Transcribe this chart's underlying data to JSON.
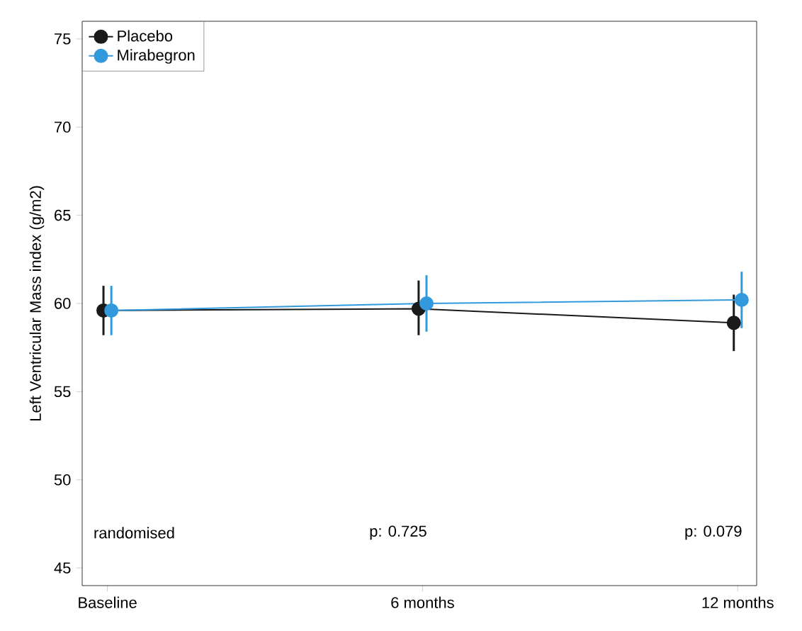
{
  "chart_data": {
    "type": "line",
    "ylabel": "Left Ventricular Mass index (g/m2)",
    "categories": [
      "Baseline",
      "6 months",
      "12 months"
    ],
    "series": [
      {
        "name": "Placebo",
        "color": "#1a1a1a",
        "values": [
          59.6,
          59.7,
          58.9
        ],
        "errors": [
          [
            58.2,
            61.0
          ],
          [
            58.2,
            61.3
          ],
          [
            57.3,
            60.5
          ]
        ]
      },
      {
        "name": "Mirabegron",
        "color": "#3399dd",
        "values": [
          59.6,
          60.0,
          60.2
        ],
        "errors": [
          [
            58.2,
            61.0
          ],
          [
            58.4,
            61.6
          ],
          [
            58.6,
            61.8
          ]
        ]
      }
    ],
    "annotations": [
      "randomised",
      "p: 0.725",
      "p: 0.079"
    ],
    "ylim": [
      44,
      76
    ],
    "yticks": [
      45,
      50,
      55,
      60,
      65,
      70,
      75
    ],
    "grid": false,
    "legend": "top left",
    "marker": "circle",
    "line_style": "solid"
  }
}
